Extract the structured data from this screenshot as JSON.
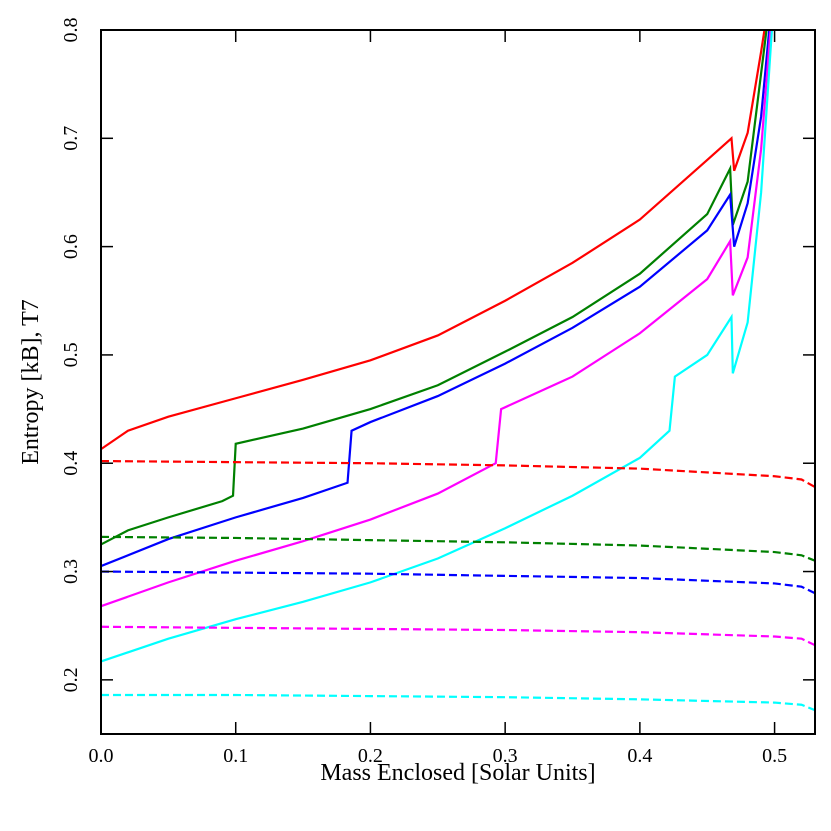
{
  "chart_data": {
    "type": "line",
    "xlabel": "Mass Enclosed [Solar Units]",
    "ylabel": "Entropy [kB], T7",
    "xlim": [
      0,
      0.53
    ],
    "ylim": [
      0.15,
      0.8
    ],
    "xticks": [
      {
        "value": 0,
        "label": "0.0"
      },
      0.1,
      0.2,
      0.3,
      0.4,
      0.5
    ],
    "yticks": [
      0.2,
      0.3,
      0.4,
      0.5,
      0.6,
      0.7,
      0.8
    ],
    "series": [
      {
        "color": "#ff0000",
        "dashed": false,
        "x": [
          0,
          0.02,
          0.05,
          0.1,
          0.15,
          0.2,
          0.25,
          0.3,
          0.35,
          0.4,
          0.45,
          0.468,
          0.47,
          0.48,
          0.49,
          0.4925
        ],
        "values": [
          0.413,
          0.43,
          0.443,
          0.46,
          0.477,
          0.495,
          0.518,
          0.55,
          0.585,
          0.625,
          0.68,
          0.7,
          0.67,
          0.705,
          0.78,
          0.8
        ]
      },
      {
        "color": "#008000",
        "dashed": false,
        "x": [
          0,
          0.02,
          0.05,
          0.09,
          0.098,
          0.1,
          0.15,
          0.2,
          0.25,
          0.3,
          0.35,
          0.4,
          0.45,
          0.467,
          0.469,
          0.48,
          0.49,
          0.494
        ],
        "values": [
          0.325,
          0.338,
          0.35,
          0.365,
          0.37,
          0.418,
          0.432,
          0.45,
          0.472,
          0.503,
          0.535,
          0.575,
          0.63,
          0.672,
          0.62,
          0.66,
          0.76,
          0.8
        ]
      },
      {
        "color": "#0000ff",
        "dashed": false,
        "x": [
          0,
          0.05,
          0.1,
          0.15,
          0.183,
          0.186,
          0.2,
          0.25,
          0.3,
          0.35,
          0.4,
          0.45,
          0.467,
          0.47,
          0.48,
          0.49,
          0.496
        ],
        "values": [
          0.305,
          0.33,
          0.35,
          0.368,
          0.382,
          0.43,
          0.438,
          0.462,
          0.492,
          0.525,
          0.563,
          0.615,
          0.648,
          0.6,
          0.64,
          0.72,
          0.8
        ]
      },
      {
        "color": "#ff00ff",
        "dashed": false,
        "x": [
          0,
          0.05,
          0.1,
          0.15,
          0.2,
          0.25,
          0.293,
          0.297,
          0.35,
          0.4,
          0.45,
          0.467,
          0.469,
          0.48,
          0.49,
          0.497
        ],
        "values": [
          0.268,
          0.29,
          0.31,
          0.328,
          0.348,
          0.372,
          0.4,
          0.45,
          0.48,
          0.52,
          0.57,
          0.605,
          0.555,
          0.59,
          0.69,
          0.8
        ]
      },
      {
        "color": "#00ffff",
        "dashed": false,
        "x": [
          0,
          0.05,
          0.1,
          0.15,
          0.2,
          0.25,
          0.3,
          0.35,
          0.4,
          0.422,
          0.426,
          0.45,
          0.468,
          0.469,
          0.48,
          0.49,
          0.498
        ],
        "values": [
          0.217,
          0.238,
          0.256,
          0.272,
          0.29,
          0.312,
          0.34,
          0.37,
          0.405,
          0.43,
          0.48,
          0.5,
          0.535,
          0.483,
          0.53,
          0.65,
          0.8
        ]
      },
      {
        "color": "#ff0000",
        "dashed": true,
        "x": [
          0,
          0.1,
          0.2,
          0.3,
          0.4,
          0.5,
          0.52,
          0.53
        ],
        "values": [
          0.402,
          0.401,
          0.4,
          0.398,
          0.395,
          0.388,
          0.385,
          0.378
        ]
      },
      {
        "color": "#008000",
        "dashed": true,
        "x": [
          0,
          0.1,
          0.2,
          0.3,
          0.4,
          0.5,
          0.52,
          0.53
        ],
        "values": [
          0.332,
          0.331,
          0.329,
          0.327,
          0.324,
          0.318,
          0.315,
          0.31
        ]
      },
      {
        "color": "#0000ff",
        "dashed": true,
        "x": [
          0,
          0.1,
          0.2,
          0.3,
          0.4,
          0.5,
          0.52,
          0.53
        ],
        "values": [
          0.3,
          0.299,
          0.298,
          0.296,
          0.294,
          0.289,
          0.286,
          0.28
        ]
      },
      {
        "color": "#ff00ff",
        "dashed": true,
        "x": [
          0,
          0.1,
          0.2,
          0.3,
          0.4,
          0.5,
          0.52,
          0.53
        ],
        "values": [
          0.249,
          0.248,
          0.247,
          0.246,
          0.244,
          0.24,
          0.238,
          0.232
        ]
      },
      {
        "color": "#00ffff",
        "dashed": true,
        "x": [
          0,
          0.1,
          0.2,
          0.3,
          0.4,
          0.5,
          0.52,
          0.53
        ],
        "values": [
          0.186,
          0.186,
          0.185,
          0.184,
          0.182,
          0.179,
          0.177,
          0.172
        ]
      }
    ]
  }
}
